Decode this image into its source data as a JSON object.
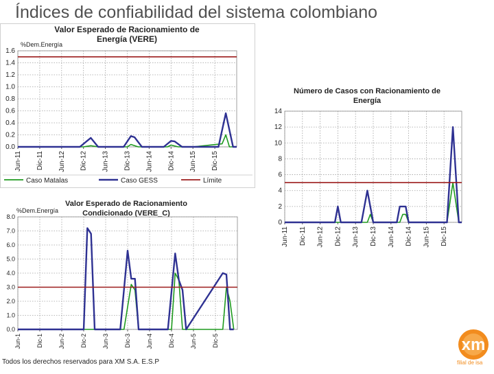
{
  "slide": {
    "title": "Índices de confiabilidad del sistema colombiano",
    "footer": "Todos los derechos reservados para XM S.A. E.S.P",
    "logo_text": "xm",
    "logo_tagline": "filial de isa"
  },
  "colors": {
    "caso_matalas": "#1e9a1e",
    "caso_gess": "#2e3192",
    "limite": "#9b1b1b",
    "logo_orange": "#f28c1e"
  },
  "chart_data": [
    {
      "id": "vere",
      "type": "line",
      "title": "Valor Esperado de Racionamiento de Energía (VERE)",
      "title_lines": [
        "Valor Esperado de Racionamiento de",
        "Energía (VERE)"
      ],
      "ylabel": "%Dem.Energía",
      "ylim": [
        0,
        1.6
      ],
      "yticks": [
        "0.0",
        "0.2",
        "0.4",
        "0.6",
        "0.8",
        "1.0",
        "1.2",
        "1.4",
        "1.6"
      ],
      "grid": true,
      "legend_position": "bottom",
      "x_tick_labels": [
        "Jun-11",
        "Dic-11",
        "Jun-12",
        "Dic-12",
        "Jun-13",
        "Dic-13",
        "Jun-14",
        "Dic-14",
        "Jun-15",
        "Dic-15"
      ],
      "x_ticks_month": [
        0,
        6,
        12,
        18,
        24,
        30,
        36,
        42,
        48,
        54
      ],
      "xlim": [
        0,
        60
      ],
      "limit_value": 1.5,
      "series": [
        {
          "name": "Caso Matalas",
          "color_key": "caso_matalas",
          "x": [
            0,
            18,
            20,
            22,
            30,
            31,
            33,
            36,
            41,
            42,
            44,
            48,
            56,
            57,
            58,
            60
          ],
          "y": [
            0,
            0,
            0.02,
            0,
            0,
            0.04,
            0,
            0,
            0,
            0.03,
            0,
            0,
            0.05,
            0.2,
            0,
            0
          ]
        },
        {
          "name": "Caso GESS",
          "color_key": "caso_gess",
          "x": [
            0,
            17,
            20,
            22,
            29,
            31,
            32,
            34,
            40,
            42,
            43,
            45,
            55,
            57,
            59,
            60
          ],
          "y": [
            0,
            0,
            0.15,
            0,
            0,
            0.18,
            0.16,
            0,
            0,
            0.1,
            0.09,
            0,
            0,
            0.56,
            0,
            0
          ]
        },
        {
          "name": "Límite",
          "color_key": "limite",
          "x": [
            0,
            60
          ],
          "y": [
            1.5,
            1.5
          ]
        }
      ]
    },
    {
      "id": "cases",
      "type": "line",
      "title": "Número de Casos con Racionamiento de Energía",
      "title_lines": [
        "Número de Casos con Racionamiento de",
        "Energía"
      ],
      "ylabel": "",
      "ylim": [
        0,
        14
      ],
      "yticks": [
        "0",
        "2",
        "4",
        "6",
        "8",
        "10",
        "12",
        "14"
      ],
      "grid": true,
      "x_tick_labels": [
        "Jun-11",
        "Dic-11",
        "Jun-12",
        "Dic-12",
        "Jun-13",
        "Dic-13",
        "Jun-14",
        "Dic-14",
        "Jun-15",
        "Dic-15"
      ],
      "x_ticks_month": [
        0,
        6,
        12,
        18,
        24,
        30,
        36,
        42,
        48,
        54
      ],
      "xlim": [
        0,
        60
      ],
      "limit_value": 5,
      "series": [
        {
          "name": "Caso Matalas",
          "color_key": "caso_matalas",
          "x": [
            0,
            28,
            29,
            30,
            31,
            39,
            40,
            41,
            42,
            55,
            57,
            59,
            60
          ],
          "y": [
            0,
            0,
            1,
            0,
            0,
            0,
            1,
            1,
            0,
            0,
            5,
            0,
            0
          ]
        },
        {
          "name": "Caso GESS",
          "color_key": "caso_gess",
          "x": [
            0,
            17,
            18,
            19,
            26,
            28,
            30,
            31,
            38,
            39,
            41,
            42,
            55,
            57,
            59,
            60
          ],
          "y": [
            0,
            0,
            2,
            0,
            0,
            4,
            0,
            0,
            0,
            2,
            2,
            0,
            0,
            12,
            0,
            0
          ]
        },
        {
          "name": "Límite",
          "color_key": "limite",
          "x": [
            0,
            60
          ],
          "y": [
            5,
            5
          ]
        }
      ]
    },
    {
      "id": "vere-c",
      "type": "line",
      "title": "Valor Esperado de Racionamiento Condicionado (VERE_C)",
      "title_lines": [
        "Valor Esperado de Racionamiento",
        "Condicionado (VERE_C)"
      ],
      "ylabel": "%Dem.Energía",
      "ylim": [
        0,
        8
      ],
      "yticks": [
        "0.0",
        "1.0",
        "2.0",
        "3.0",
        "4.0",
        "5.0",
        "6.0",
        "7.0",
        "8.0"
      ],
      "grid": true,
      "x_tick_labels": [
        "Jun-1",
        "Dic-1",
        "Jun-2",
        "Dic-2",
        "Jun-3",
        "Dic-3",
        "Jun-4",
        "Dic-4",
        "Jun-5",
        "Dic-5"
      ],
      "x_ticks_month": [
        0,
        6,
        12,
        18,
        24,
        30,
        36,
        42,
        48,
        54
      ],
      "xlim": [
        0,
        60
      ],
      "limit_value": 3,
      "series": [
        {
          "name": "Caso Matalas",
          "color_key": "caso_matalas",
          "x": [
            0,
            29,
            31,
            32,
            33,
            42,
            43,
            44,
            45,
            56,
            57,
            58,
            59
          ],
          "y": [
            0,
            0,
            3.2,
            2.8,
            0,
            0,
            4,
            3.5,
            0,
            0,
            3,
            2,
            0
          ]
        },
        {
          "name": "Caso GESS",
          "color_key": "caso_gess",
          "x": [
            0,
            18,
            19,
            20,
            21,
            28,
            30,
            31,
            32,
            33,
            41,
            43,
            44,
            45,
            46,
            56,
            57,
            58,
            59
          ],
          "y": [
            0,
            0,
            7.2,
            6.8,
            0,
            0,
            5.6,
            3.6,
            3.6,
            0,
            0,
            5.4,
            3.5,
            2.8,
            0,
            4,
            3.9,
            0,
            0
          ]
        },
        {
          "name": "Límite",
          "color_key": "limite",
          "x": [
            0,
            60
          ],
          "y": [
            3,
            3
          ]
        }
      ]
    }
  ]
}
